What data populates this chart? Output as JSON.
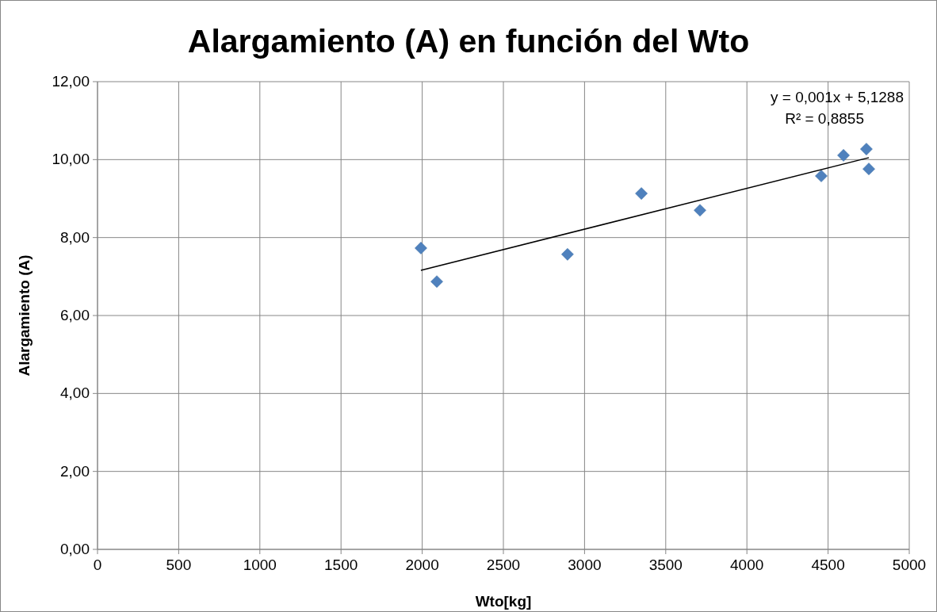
{
  "chart_data": {
    "type": "scatter",
    "title": "Alargamiento (A) en función del Wto",
    "xlabel": "Wto[kg]",
    "ylabel": "Alargamiento (A)",
    "xlim": [
      0,
      5000
    ],
    "xticks": [
      0,
      500,
      1000,
      1500,
      2000,
      2500,
      3000,
      3500,
      4000,
      4500,
      5000
    ],
    "ylim": [
      0,
      12
    ],
    "yticks": [
      {
        "value": 0,
        "label": "0,00"
      },
      {
        "value": 2,
        "label": "2,00"
      },
      {
        "value": 4,
        "label": "4,00"
      },
      {
        "value": 6,
        "label": "6,00"
      },
      {
        "value": 8,
        "label": "8,00"
      },
      {
        "value": 10,
        "label": "10,00"
      },
      {
        "value": 12,
        "label": "12,00"
      }
    ],
    "grid": true,
    "series": [
      {
        "color": "#4f81bd",
        "marker": "diamond",
        "x": [
          1992,
          2090,
          2895,
          3350,
          3711,
          4458,
          4595,
          4736,
          4751
        ],
        "values": [
          7.73,
          6.87,
          7.57,
          9.13,
          8.7,
          9.58,
          10.11,
          10.27,
          9.76
        ]
      },
      {
        "type": "line",
        "color": "#000000",
        "marker": "none",
        "x": [
          1992,
          4751
        ],
        "values": [
          7.16,
          10.05
        ]
      }
    ],
    "annotations": [
      "y = 0,001x + 5,1288",
      "R² = 0,8855"
    ]
  }
}
